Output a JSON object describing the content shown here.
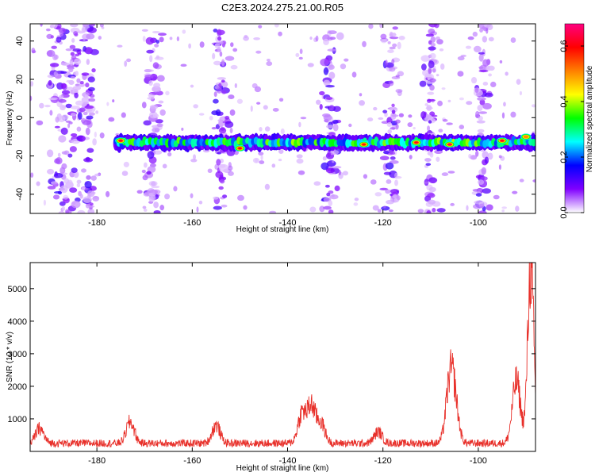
{
  "title": "C2E3.2024.275.21.00.R05",
  "chart_data": [
    {
      "type": "heatmap",
      "title": "C2E3.2024.275.21.00.R05",
      "xlabel": "Height of straight line (km)",
      "ylabel": "Frequency (Hz)",
      "xlim": [
        -194,
        -88
      ],
      "ylim": [
        -50,
        49
      ],
      "xticks": [
        -180,
        -160,
        -140,
        -120,
        -100
      ],
      "yticks": [
        -40,
        -20,
        0,
        20,
        40
      ],
      "colorbar": {
        "label": "Normalized spectral amplitude",
        "range": [
          0.0,
          0.68
        ],
        "ticks": [
          0.0,
          0.2,
          0.4,
          0.6
        ],
        "tick_labels": [
          "0.0",
          "0.2",
          "0.4",
          "0.6"
        ],
        "colors": [
          "#ffffff",
          "#8000ff",
          "#0000ff",
          "#00ffff",
          "#00ff00",
          "#ffff00",
          "#ff8000",
          "#ff0000",
          "#ff0080"
        ]
      },
      "signal_band": {
        "center_hz": -13,
        "half_width_hz": 4,
        "x_start": -176
      },
      "peaks": [
        {
          "x": -175,
          "y": -12,
          "v": 0.62
        },
        {
          "x": -150,
          "y": -16,
          "v": 0.6
        },
        {
          "x": -124,
          "y": -14,
          "v": 0.58
        },
        {
          "x": -113,
          "y": -13,
          "v": 0.62
        },
        {
          "x": -106,
          "y": -14,
          "v": 0.66
        },
        {
          "x": -95,
          "y": -12,
          "v": 0.62
        },
        {
          "x": -90,
          "y": -10,
          "v": 0.5
        }
      ],
      "noise_columns": [
        -188,
        -185,
        -182,
        -168,
        -154,
        -131,
        -118,
        -110,
        -99
      ]
    },
    {
      "type": "line",
      "xlabel": "Height of straight line (km)",
      "ylabel": "SNR (10 * v/v)",
      "xlim": [
        -194,
        -88
      ],
      "ylim": [
        0,
        5800
      ],
      "xticks": [
        -180,
        -160,
        -140,
        -120,
        -100
      ],
      "yticks": [
        1000,
        2000,
        3000,
        4000,
        5000
      ],
      "color": "#e8302a",
      "baseline": 250,
      "features": [
        {
          "x": -192,
          "h": 450
        },
        {
          "x": -173,
          "h": 650
        },
        {
          "x": -155,
          "h": 550
        },
        {
          "x": -137,
          "h": 900
        },
        {
          "x": -135,
          "h": 1100
        },
        {
          "x": -133,
          "h": 600
        },
        {
          "x": -121,
          "h": 350
        },
        {
          "x": -106,
          "h": 1600
        },
        {
          "x": -105,
          "h": 1100
        },
        {
          "x": -92,
          "h": 1900
        },
        {
          "x": -89,
          "h": 5400
        }
      ]
    }
  ]
}
